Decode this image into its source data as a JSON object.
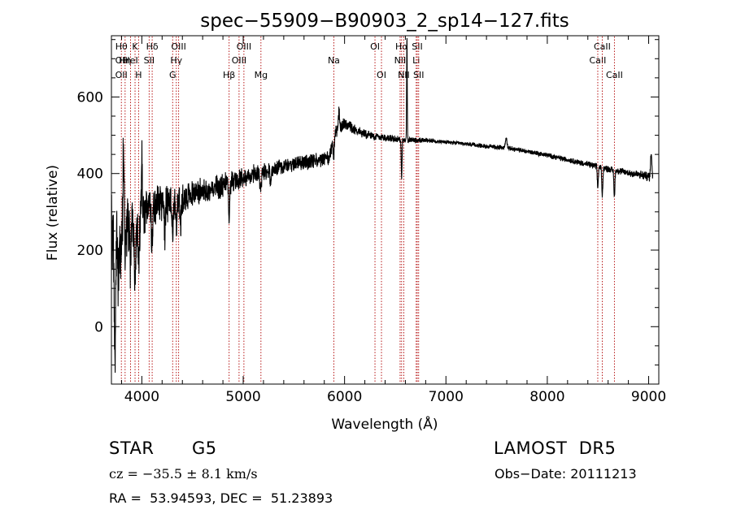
{
  "chart_data": {
    "type": "line",
    "title": "spec−55909−B90903_2_sp14−127.fits",
    "xlabel": "Wavelength (Å)",
    "ylabel": "Flux (relative)",
    "xlim": [
      3700,
      9100
    ],
    "ylim": [
      -150,
      760
    ],
    "x_ticks": [
      4000,
      5000,
      6000,
      7000,
      8000,
      9000
    ],
    "y_ticks": [
      0,
      200,
      400,
      600
    ],
    "grid": false,
    "line_color": "#000000",
    "marker_color": "#b00000",
    "series": [
      {
        "continuum": [
          [
            3700,
            250
          ],
          [
            3800,
            262
          ],
          [
            3900,
            280
          ],
          [
            4000,
            300
          ],
          [
            4100,
            315
          ],
          [
            4200,
            320
          ],
          [
            4300,
            330
          ],
          [
            4400,
            338
          ],
          [
            4500,
            345
          ],
          [
            4700,
            360
          ],
          [
            4900,
            380
          ],
          [
            5100,
            398
          ],
          [
            5300,
            412
          ],
          [
            5500,
            425
          ],
          [
            5700,
            432
          ],
          [
            5850,
            440
          ],
          [
            5900,
            505
          ],
          [
            6000,
            530
          ],
          [
            6100,
            515
          ],
          [
            6200,
            502
          ],
          [
            6300,
            498
          ],
          [
            6450,
            492
          ],
          [
            6600,
            487
          ],
          [
            6800,
            487
          ],
          [
            7000,
            482
          ],
          [
            7200,
            477
          ],
          [
            7400,
            471
          ],
          [
            7600,
            467
          ],
          [
            7800,
            458
          ],
          [
            8000,
            448
          ],
          [
            8200,
            436
          ],
          [
            8400,
            424
          ],
          [
            8600,
            412
          ],
          [
            8800,
            402
          ],
          [
            9000,
            392
          ],
          [
            9040,
            386
          ]
        ],
        "features": [
          {
            "x": 3735,
            "depth": -310,
            "width": 8
          },
          {
            "x": 3770,
            "depth": -140,
            "width": 8
          },
          {
            "x": 3797,
            "depth": -90,
            "width": 5
          },
          {
            "x": 3820,
            "depth": 180,
            "width": 6
          },
          {
            "x": 3835,
            "depth": -100,
            "width": 5
          },
          {
            "x": 3889,
            "depth": -120,
            "width": 6
          },
          {
            "x": 3933,
            "depth": -160,
            "width": 7
          },
          {
            "x": 3968,
            "depth": -130,
            "width": 7
          },
          {
            "x": 4000,
            "depth": 130,
            "width": 5
          },
          {
            "x": 4101,
            "depth": -110,
            "width": 6
          },
          {
            "x": 4226,
            "depth": -70,
            "width": 5
          },
          {
            "x": 4305,
            "depth": -75,
            "width": 7
          },
          {
            "x": 4340,
            "depth": -90,
            "width": 6
          },
          {
            "x": 4383,
            "depth": -60,
            "width": 5
          },
          {
            "x": 4861,
            "depth": -105,
            "width": 6
          },
          {
            "x": 5172,
            "depth": -40,
            "width": 8
          },
          {
            "x": 5270,
            "depth": -30,
            "width": 6
          },
          {
            "x": 5893,
            "depth": -55,
            "width": 6
          },
          {
            "x": 5945,
            "depth": 45,
            "width": 5
          },
          {
            "x": 6563,
            "depth": -100,
            "width": 4
          },
          {
            "x": 6615,
            "depth": 270,
            "width": 3
          },
          {
            "x": 7595,
            "depth": 25,
            "width": 8
          },
          {
            "x": 8498,
            "depth": -55,
            "width": 5
          },
          {
            "x": 8542,
            "depth": -75,
            "width": 5
          },
          {
            "x": 8662,
            "depth": -70,
            "width": 5
          },
          {
            "x": 9025,
            "depth": 70,
            "width": 6
          }
        ],
        "noise": [
          [
            3700,
            75
          ],
          [
            3850,
            62
          ],
          [
            4000,
            48
          ],
          [
            4300,
            35
          ],
          [
            4700,
            24
          ],
          [
            5200,
            17
          ],
          [
            5800,
            14
          ],
          [
            6000,
            12
          ],
          [
            6400,
            7
          ],
          [
            7000,
            4
          ],
          [
            8000,
            5
          ],
          [
            8700,
            7
          ],
          [
            9050,
            10
          ]
        ]
      }
    ],
    "line_markers": [
      {
        "x": 3798,
        "labels": [
          {
            "row": 2,
            "text": "Hθ"
          },
          {
            "row": 1,
            "text": "OII"
          },
          {
            "row": 0,
            "text": "OII"
          }
        ]
      },
      {
        "x": 3835,
        "labels": [
          {
            "row": 1,
            "text": "Hη"
          }
        ]
      },
      {
        "x": 3889,
        "labels": [
          {
            "row": 1,
            "text": "HeI"
          }
        ]
      },
      {
        "x": 3933,
        "labels": [
          {
            "row": 2,
            "text": "K"
          }
        ]
      },
      {
        "x": 3968,
        "labels": [
          {
            "row": 0,
            "text": "H"
          }
        ]
      },
      {
        "x": 4072,
        "labels": [
          {
            "row": 1,
            "text": "SII"
          }
        ]
      },
      {
        "x": 4102,
        "labels": [
          {
            "row": 2,
            "text": "Hδ"
          }
        ]
      },
      {
        "x": 4304,
        "labels": [
          {
            "row": 0,
            "text": "G"
          }
        ]
      },
      {
        "x": 4340,
        "labels": [
          {
            "row": 1,
            "text": "Hγ"
          }
        ]
      },
      {
        "x": 4363,
        "labels": [
          {
            "row": 2,
            "text": "OIII"
          }
        ]
      },
      {
        "x": 4861,
        "labels": [
          {
            "row": 0,
            "text": "Hβ"
          }
        ]
      },
      {
        "x": 4959,
        "labels": [
          {
            "row": 1,
            "text": "OIII"
          }
        ]
      },
      {
        "x": 5007,
        "labels": [
          {
            "row": 2,
            "text": "OIII"
          }
        ]
      },
      {
        "x": 5175,
        "labels": [
          {
            "row": 0,
            "text": "Mg"
          }
        ]
      },
      {
        "x": 5894,
        "labels": [
          {
            "row": 1,
            "text": "Na"
          }
        ]
      },
      {
        "x": 6300,
        "labels": [
          {
            "row": 2,
            "text": "OI"
          }
        ]
      },
      {
        "x": 6364,
        "labels": [
          {
            "row": 0,
            "text": "OI"
          }
        ]
      },
      {
        "x": 6548,
        "labels": [
          {
            "row": 1,
            "text": "NII"
          }
        ]
      },
      {
        "x": 6563,
        "labels": [
          {
            "row": 2,
            "text": "Hα"
          }
        ]
      },
      {
        "x": 6584,
        "labels": [
          {
            "row": 0,
            "text": "NII"
          }
        ]
      },
      {
        "x": 6707,
        "labels": [
          {
            "row": 1,
            "text": "Li"
          }
        ]
      },
      {
        "x": 6717,
        "labels": [
          {
            "row": 2,
            "text": "SII"
          }
        ]
      },
      {
        "x": 6731,
        "labels": [
          {
            "row": 0,
            "text": "SII"
          }
        ]
      },
      {
        "x": 8498,
        "labels": [
          {
            "row": 1,
            "text": "CaII"
          }
        ]
      },
      {
        "x": 8542,
        "labels": [
          {
            "row": 2,
            "text": "CaII"
          }
        ]
      },
      {
        "x": 8662,
        "labels": [
          {
            "row": 0,
            "text": "CaII"
          }
        ]
      }
    ]
  },
  "footer": {
    "object_class": "STAR",
    "subclass": "G5",
    "survey": "LAMOST  DR5",
    "redshift": "cz = −35.5 ± 8.1 km/s",
    "obs_date": "Obs−Date: 20111213",
    "coords": "RA =  53.94593, DEC =  51.23893"
  }
}
